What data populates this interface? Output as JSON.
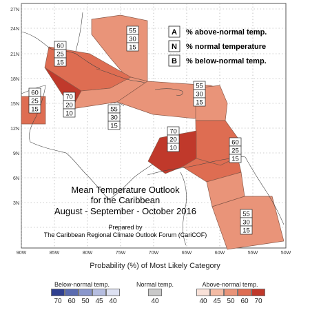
{
  "map": {
    "lat_ticks": [
      "27N",
      "24N",
      "21N",
      "18N",
      "15N",
      "12N",
      "9N",
      "6N",
      "3N"
    ],
    "lon_ticks": [
      "90W",
      "85W",
      "80W",
      "75W",
      "70W",
      "65W",
      "60W",
      "55W",
      "50W"
    ],
    "title_lines": [
      "Mean Temperature Outlook",
      "for the Caribbean",
      "August - September - October 2016"
    ],
    "prepared_lines": [
      "Prepared by",
      "The Caribbean Regional Climate Outlook Forum (CariCOF)"
    ],
    "key": [
      {
        "letter": "A",
        "text": "% above-normal temp."
      },
      {
        "letter": "N",
        "text": "% normal temperature"
      },
      {
        "letter": "B",
        "text": "% below-normal temp."
      }
    ],
    "region_boxes": [
      {
        "id": "bahamas",
        "values": [
          "55",
          "30",
          "15"
        ]
      },
      {
        "id": "cuba",
        "values": [
          "60",
          "25",
          "15"
        ]
      },
      {
        "id": "yucatan",
        "values": [
          "60",
          "25",
          "15"
        ]
      },
      {
        "id": "jamaica",
        "values": [
          "70",
          "20",
          "10"
        ]
      },
      {
        "id": "central-caribbean",
        "values": [
          "55",
          "30",
          "15"
        ]
      },
      {
        "id": "puerto-rico",
        "values": [
          "55",
          "30",
          "15"
        ]
      },
      {
        "id": "southern-caribbean",
        "values": [
          "70",
          "20",
          "10"
        ]
      },
      {
        "id": "eastern-caribbean",
        "values": [
          "60",
          "25",
          "15"
        ]
      },
      {
        "id": "guianas",
        "values": [
          "55",
          "30",
          "15"
        ]
      }
    ]
  },
  "legend": {
    "title": "Probability (%) of Most Likely Category",
    "below": {
      "label": "Below-normal temp.",
      "values": [
        "70",
        "60",
        "50",
        "45",
        "40"
      ],
      "colors": [
        "#2f3f8f",
        "#5a6bb0",
        "#8a97cc",
        "#b5bde0",
        "#dde1f2"
      ]
    },
    "normal": {
      "label": "Normal temp.",
      "values": [
        "40"
      ],
      "colors": [
        "#c9c9c9"
      ]
    },
    "above": {
      "label": "Above-normal temp.",
      "values": [
        "40",
        "45",
        "50",
        "60",
        "70"
      ],
      "colors": [
        "#f9e1d8",
        "#f3bba4",
        "#e99479",
        "#de6d52",
        "#c0392b"
      ]
    }
  }
}
